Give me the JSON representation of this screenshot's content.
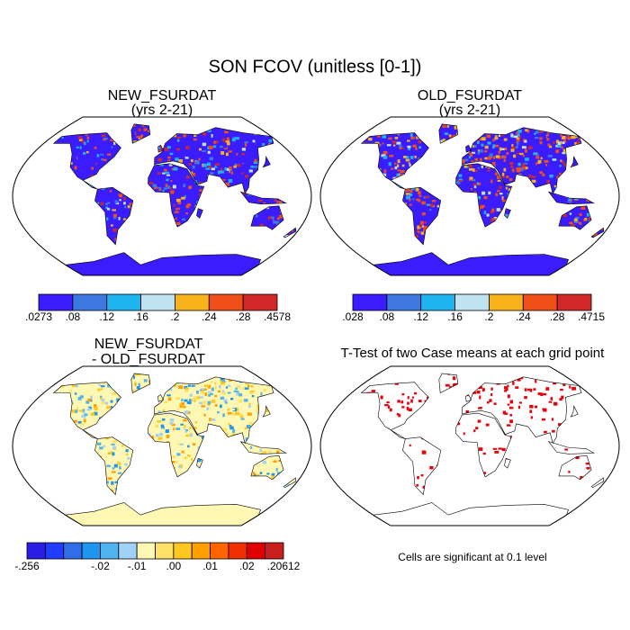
{
  "title": "SON FCOV (unitless [0-1])",
  "panels": [
    {
      "title": "NEW_FSURDAT",
      "subtitle": "(yrs 2-21)",
      "colorbar": {
        "colors": [
          "#3a1cff",
          "#3c78e0",
          "#1eb4f0",
          "#bfe3f0",
          "#f7b21c",
          "#f04e18",
          "#d02828"
        ],
        "labels": [
          ".0273",
          ".08",
          ".12",
          ".16",
          ".2",
          ".24",
          ".28",
          ".4578"
        ]
      }
    },
    {
      "title": "OLD_FSURDAT",
      "subtitle": "(yrs 2-21)",
      "colorbar": {
        "colors": [
          "#3a1cff",
          "#3c78e0",
          "#1eb4f0",
          "#bfe3f0",
          "#f7b21c",
          "#f04e18",
          "#d02828"
        ],
        "labels": [
          ".028",
          ".08",
          ".12",
          ".16",
          ".2",
          ".24",
          ".28",
          ".4715"
        ]
      }
    },
    {
      "title": "NEW_FSURDAT",
      "subtitle": "- OLD_FSURDAT",
      "colorbar": {
        "colors": [
          "#2a1ee6",
          "#1f3cff",
          "#2f6ee8",
          "#1e96f0",
          "#50b4f0",
          "#a0d2f5",
          "#fff8b4",
          "#ffe066",
          "#ffc81e",
          "#ffa000",
          "#ff6400",
          "#f03000",
          "#e00000",
          "#c81e1e"
        ],
        "labels": [
          "-.256",
          null,
          null,
          null,
          "-.02",
          null,
          "-.01",
          null,
          ".00",
          null,
          ".01",
          null,
          ".02",
          null,
          ".20612"
        ]
      }
    },
    {
      "title": "T-Test of two Case means at each grid point",
      "note": "Cells are significant at 0.1 level"
    }
  ]
}
